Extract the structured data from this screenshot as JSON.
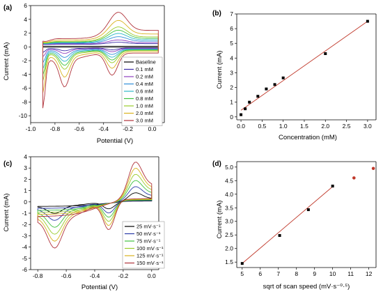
{
  "chart_data": [
    {
      "panel": "(a)",
      "type": "line",
      "xlabel": "Potential (V)",
      "ylabel": "Current (mA)",
      "xlim": [
        -1.0,
        0.1
      ],
      "ylim": [
        -11,
        6
      ],
      "xticks": [
        -1.0,
        -0.8,
        -0.6,
        -0.4,
        -0.2,
        0.0
      ],
      "xtick_labels": [
        "-1.0",
        "-0.8",
        "-0.6",
        "-0.4",
        "-0.2",
        "0.0"
      ],
      "yticks": [
        -10,
        -8,
        -6,
        -4,
        -2,
        0,
        2,
        4,
        6
      ],
      "ytick_labels": [
        "-10",
        "-8",
        "-6",
        "-4",
        "-2",
        "0",
        "2",
        "4",
        "6"
      ],
      "legend": "right",
      "series": [
        {
          "name": "Baseline",
          "color": "#000000",
          "scale": 0.0
        },
        {
          "name": "0.1 mM",
          "color": "#3a2aa8",
          "scale": 0.08
        },
        {
          "name": "0.2 mM",
          "color": "#8e3fbf",
          "scale": 0.15
        },
        {
          "name": "0.4 mM",
          "color": "#2f8ed8",
          "scale": 0.25
        },
        {
          "name": "0.6 mM",
          "color": "#2fb8c8",
          "scale": 0.35
        },
        {
          "name": "0.8 mM",
          "color": "#3fc23f",
          "scale": 0.45
        },
        {
          "name": "1.0 mM",
          "color": "#9acb2a",
          "scale": 0.55
        },
        {
          "name": "2.0 mM",
          "color": "#d9b21f",
          "scale": 0.75
        },
        {
          "name": "3.0 mM",
          "color": "#b0323a",
          "scale": 1.0
        }
      ]
    },
    {
      "panel": "(b)",
      "type": "scatter",
      "xlabel": "Concentration (mM)",
      "ylabel": "Current (mA)",
      "xlim": [
        -0.1,
        3.2
      ],
      "ylim": [
        -0.2,
        7.0
      ],
      "xticks": [
        0.0,
        0.5,
        1.0,
        1.5,
        2.0,
        2.5,
        3.0
      ],
      "xtick_labels": [
        "0.0",
        "0.5",
        "1.0",
        "1.5",
        "2.0",
        "2.5",
        "3.0"
      ],
      "yticks": [
        0,
        1,
        2,
        3,
        4,
        5,
        6,
        7
      ],
      "ytick_labels": [
        "0",
        "1",
        "2",
        "3",
        "4",
        "5",
        "6",
        "7"
      ],
      "x": [
        0.0,
        0.1,
        0.2,
        0.4,
        0.6,
        0.8,
        1.0,
        2.0,
        3.0
      ],
      "y": [
        0.15,
        0.55,
        1.0,
        1.4,
        1.9,
        2.2,
        2.65,
        4.3,
        6.5
      ],
      "fit": {
        "x": [
          0.0,
          3.0
        ],
        "y": [
          0.45,
          6.5
        ],
        "color": "#c0392b"
      },
      "marker_color": "#000000"
    },
    {
      "panel": "(c)",
      "type": "line",
      "xlabel": "Potential (V)",
      "ylabel": "Current (mA)",
      "xlim": [
        -0.85,
        0.05
      ],
      "ylim": [
        -6,
        4
      ],
      "xticks": [
        -0.8,
        -0.6,
        -0.4,
        -0.2,
        0.0
      ],
      "xtick_labels": [
        "-0.8",
        "-0.6",
        "-0.4",
        "-0.2",
        "0.0"
      ],
      "yticks": [
        -6,
        -5,
        -4,
        -3,
        -2,
        -1,
        0,
        1,
        2,
        3,
        4
      ],
      "ytick_labels": [
        "-6",
        "-5",
        "-4",
        "-3",
        "-2",
        "-1",
        "0",
        "1",
        "2",
        "3",
        "4"
      ],
      "legend": "bottom-right",
      "series": [
        {
          "name": "25 mV·s⁻¹",
          "color": "#000000",
          "scale": 0.25
        },
        {
          "name": "50 mV·s⁻¹",
          "color": "#2a3ba8",
          "scale": 0.4
        },
        {
          "name": "75 mV·s⁻¹",
          "color": "#3fc23f",
          "scale": 0.55
        },
        {
          "name": "100 mV·s⁻¹",
          "color": "#9acb2a",
          "scale": 0.7
        },
        {
          "name": "125 mV·s⁻¹",
          "color": "#d9b21f",
          "scale": 0.85
        },
        {
          "name": "150 mV·s⁻¹",
          "color": "#b0323a",
          "scale": 1.0
        }
      ]
    },
    {
      "panel": "(d)",
      "type": "scatter",
      "xlabel": "sqrt of scan speed (mV·s⁻⁰·⁵)",
      "ylabel": "Current (mA)",
      "xlim": [
        4.7,
        12.4
      ],
      "ylim": [
        1.3,
        5.2
      ],
      "xticks": [
        5,
        6,
        7,
        8,
        9,
        10,
        11,
        12
      ],
      "xtick_labels": [
        "5",
        "6",
        "7",
        "8",
        "9",
        "10",
        "11",
        "12"
      ],
      "yticks": [
        1.5,
        2.0,
        2.5,
        3.0,
        3.5,
        4.0,
        4.5,
        5.0
      ],
      "ytick_labels": [
        "1.5",
        "2.0",
        "2.5",
        "3.0",
        "3.5",
        "4.0",
        "4.5",
        "5.0"
      ],
      "x": [
        5.0,
        7.07,
        8.66,
        10.0
      ],
      "y": [
        1.45,
        2.48,
        3.43,
        4.3
      ],
      "extra_points": {
        "x": [
          11.18,
          12.25
        ],
        "y": [
          4.6,
          4.95
        ],
        "color": "#c0392b"
      },
      "fit": {
        "x": [
          5.0,
          10.0
        ],
        "y": [
          1.45,
          4.28
        ],
        "color": "#c0392b"
      },
      "marker_color": "#000000"
    }
  ]
}
